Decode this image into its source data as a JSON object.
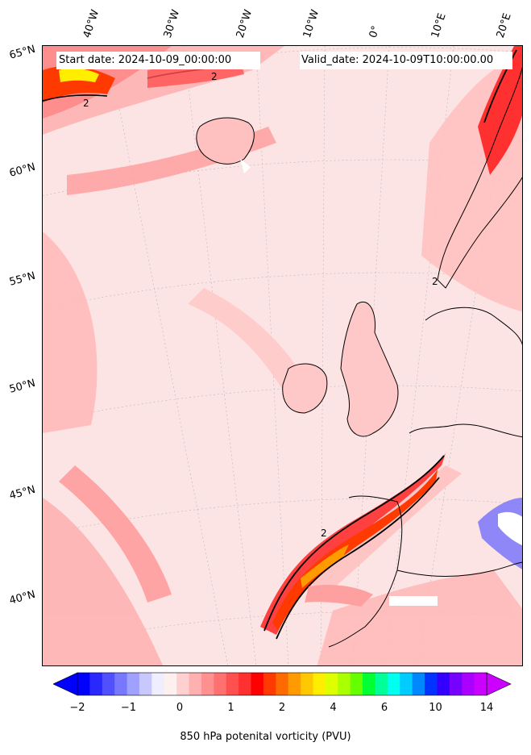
{
  "map": {
    "start_date": "Start date: 2024-10-09_00:00:00",
    "valid_date": "Valid_date: 2024-10-09T10:00:00.00",
    "lon_labels": [
      "40°W",
      "30°W",
      "20°W",
      "10°W",
      "0°",
      "10°E",
      "20°E"
    ],
    "lat_labels": [
      "65°N",
      "60°N",
      "55°N",
      "50°N",
      "45°N",
      "40°N"
    ],
    "contour_label": "2"
  },
  "colorbar": {
    "label": "850 hPa potenital vorticity (PVU)",
    "tick_labels": [
      "−2",
      "−1",
      "0",
      "1",
      "2",
      "4",
      "6",
      "10",
      "14"
    ],
    "colors": [
      "#0000ff",
      "#2828ff",
      "#5050ff",
      "#7878ff",
      "#a0a0ff",
      "#c8c8ff",
      "#eeeeff",
      "#fff0f0",
      "#ffd0d0",
      "#ffb0b0",
      "#ff9090",
      "#ff7070",
      "#ff5050",
      "#ff3030",
      "#ff0000",
      "#ff3a00",
      "#ff6a00",
      "#ff9a00",
      "#ffc800",
      "#ffee00",
      "#ddff00",
      "#aaff00",
      "#66ff00",
      "#00ff33",
      "#00ff99",
      "#00ffee",
      "#00ccff",
      "#0088ff",
      "#0033ff",
      "#3300ff",
      "#7700ff",
      "#aa00ff",
      "#cc00ff"
    ]
  }
}
